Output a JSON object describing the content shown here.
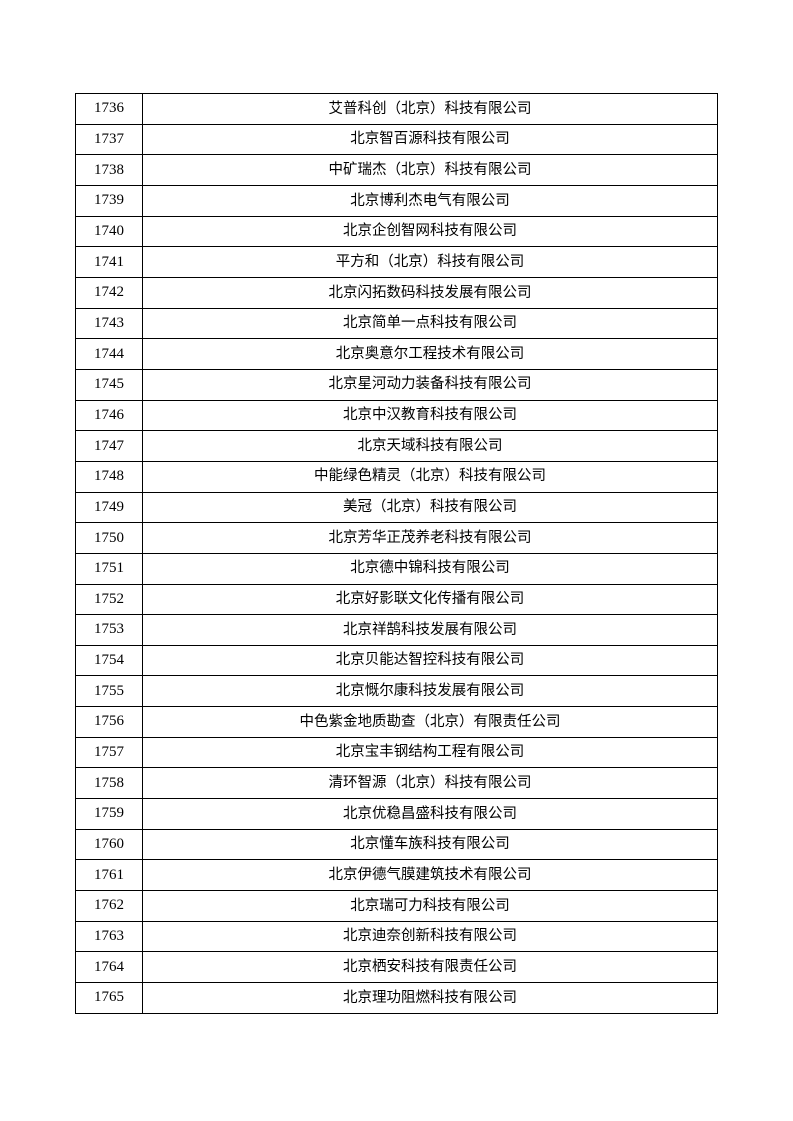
{
  "table": {
    "rows": [
      {
        "no": "1736",
        "name": "艾普科创（北京）科技有限公司"
      },
      {
        "no": "1737",
        "name": "北京智百源科技有限公司"
      },
      {
        "no": "1738",
        "name": "中矿瑞杰（北京）科技有限公司"
      },
      {
        "no": "1739",
        "name": "北京博利杰电气有限公司"
      },
      {
        "no": "1740",
        "name": "北京企创智网科技有限公司"
      },
      {
        "no": "1741",
        "name": "平方和（北京）科技有限公司"
      },
      {
        "no": "1742",
        "name": "北京闪拓数码科技发展有限公司"
      },
      {
        "no": "1743",
        "name": "北京简单一点科技有限公司"
      },
      {
        "no": "1744",
        "name": "北京奥意尔工程技术有限公司"
      },
      {
        "no": "1745",
        "name": "北京星河动力装备科技有限公司"
      },
      {
        "no": "1746",
        "name": "北京中汉教育科技有限公司"
      },
      {
        "no": "1747",
        "name": "北京天域科技有限公司"
      },
      {
        "no": "1748",
        "name": "中能绿色精灵（北京）科技有限公司"
      },
      {
        "no": "1749",
        "name": "美冠（北京）科技有限公司"
      },
      {
        "no": "1750",
        "name": "北京芳华正茂养老科技有限公司"
      },
      {
        "no": "1751",
        "name": "北京德中锦科技有限公司"
      },
      {
        "no": "1752",
        "name": "北京好影联文化传播有限公司"
      },
      {
        "no": "1753",
        "name": "北京祥鹄科技发展有限公司"
      },
      {
        "no": "1754",
        "name": "北京贝能达智控科技有限公司"
      },
      {
        "no": "1755",
        "name": "北京慨尔康科技发展有限公司"
      },
      {
        "no": "1756",
        "name": "中色紫金地质勘查（北京）有限责任公司"
      },
      {
        "no": "1757",
        "name": "北京宝丰钢结构工程有限公司"
      },
      {
        "no": "1758",
        "name": "清环智源（北京）科技有限公司"
      },
      {
        "no": "1759",
        "name": "北京优稳昌盛科技有限公司"
      },
      {
        "no": "1760",
        "name": "北京懂车族科技有限公司"
      },
      {
        "no": "1761",
        "name": "北京伊德气膜建筑技术有限公司"
      },
      {
        "no": "1762",
        "name": "北京瑞可力科技有限公司"
      },
      {
        "no": "1763",
        "name": "北京迪奈创新科技有限公司"
      },
      {
        "no": "1764",
        "name": "北京栖安科技有限责任公司"
      },
      {
        "no": "1765",
        "name": "北京理功阻燃科技有限公司"
      }
    ]
  }
}
